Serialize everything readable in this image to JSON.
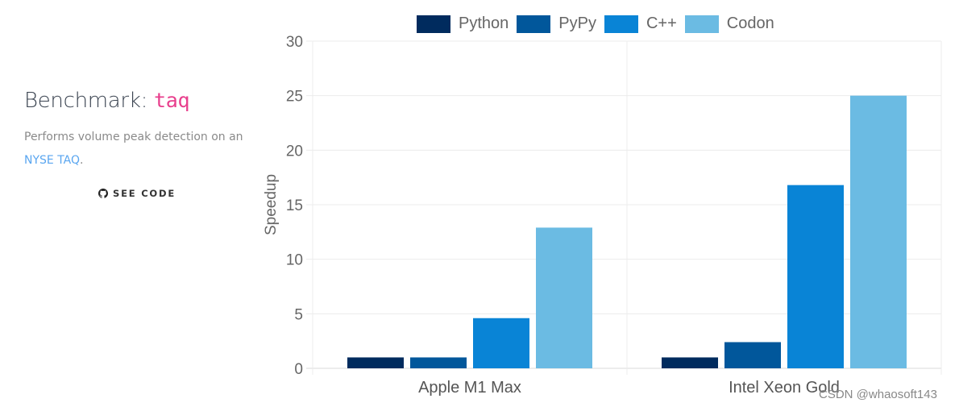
{
  "sidebar": {
    "title_prefix": "Benchmark: ",
    "title_code": "taq",
    "description": "Performs volume peak detection on an",
    "link_text": "NYSE TAQ",
    "link_suffix": ".",
    "see_code_label": "SEE CODE",
    "see_code_icon": "github-icon"
  },
  "watermark": "CSDN @whaosoft143",
  "colors": {
    "Python": "#002b5e",
    "PyPy": "#01579b",
    "C++": "#0984d6",
    "Codon": "#6bbbe3",
    "title_code": "#e83e8c",
    "link": "#5aa6f0"
  },
  "chart_data": {
    "type": "bar",
    "title": "",
    "xlabel": "",
    "ylabel": "Speedup",
    "ylim": [
      0,
      30
    ],
    "yticks": [
      0,
      5,
      10,
      15,
      20,
      25,
      30
    ],
    "grid": true,
    "legend_position": "top",
    "categories": [
      "Apple M1 Max",
      "Intel Xeon Gold"
    ],
    "series": [
      {
        "name": "Python",
        "color": "#002b5e",
        "values": [
          1.0,
          1.0
        ]
      },
      {
        "name": "PyPy",
        "color": "#01579b",
        "values": [
          1.0,
          2.4
        ]
      },
      {
        "name": "C++",
        "color": "#0984d6",
        "values": [
          4.6,
          16.8
        ]
      },
      {
        "name": "Codon",
        "color": "#6bbbe3",
        "values": [
          12.9,
          25.0
        ]
      }
    ]
  }
}
